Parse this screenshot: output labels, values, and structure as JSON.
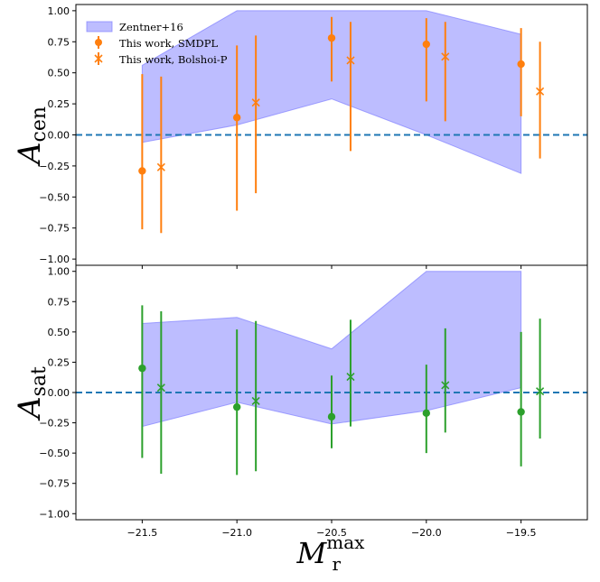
{
  "colors": {
    "band": "#8080ff",
    "band_opacity": 0.52,
    "smdpl": "#ff7f0e",
    "bolshoi": "#ff7f0e",
    "sat": "#2ca02c",
    "zero_line": "#1f77b4",
    "axis": "#000000"
  },
  "chart_data": [
    {
      "type": "scatter",
      "panel": "top",
      "ylabel": {
        "main": "A",
        "sub": "cen"
      },
      "xlim": [
        -21.85,
        -19.15
      ],
      "ylim": [
        -1.05,
        1.05
      ],
      "yticks": [
        -1.0,
        -0.75,
        -0.5,
        -0.25,
        0.0,
        0.25,
        0.5,
        0.75,
        1.0
      ],
      "ytick_labels": [
        "−1.00",
        "−0.75",
        "−0.50",
        "−0.25",
        "0.00",
        "0.25",
        "0.50",
        "0.75",
        "1.00"
      ],
      "zero_line": 0.0,
      "band": {
        "name": "Zentner+16",
        "x": [
          -21.5,
          -21.0,
          -20.5,
          -20.0,
          -19.5
        ],
        "lower": [
          -0.06,
          0.08,
          0.29,
          0.0,
          -0.31
        ],
        "upper": [
          0.56,
          1.0,
          1.0,
          1.0,
          0.81
        ]
      },
      "series": [
        {
          "name": "This work, SMDPL",
          "marker": "circle",
          "x": [
            -21.5,
            -21.0,
            -20.5,
            -20.0,
            -19.5
          ],
          "y": [
            -0.29,
            0.14,
            0.78,
            0.73,
            0.57
          ],
          "yerr_low": [
            -0.76,
            -0.61,
            0.43,
            0.27,
            0.15
          ],
          "yerr_high": [
            0.49,
            0.72,
            0.95,
            0.94,
            0.86
          ]
        },
        {
          "name": "This work, Bolshoi-P",
          "marker": "x",
          "x": [
            -21.4,
            -20.9,
            -20.4,
            -19.9,
            -19.4
          ],
          "y": [
            -0.26,
            0.26,
            0.6,
            0.63,
            0.35
          ],
          "yerr_low": [
            -0.79,
            -0.47,
            -0.13,
            0.11,
            -0.19
          ],
          "yerr_high": [
            0.47,
            0.8,
            0.91,
            0.91,
            0.75
          ]
        }
      ]
    },
    {
      "type": "scatter",
      "panel": "bottom",
      "ylabel": {
        "main": "A",
        "sub": "sat"
      },
      "xlabel": {
        "main": "M",
        "sub": "r",
        "sup": "max"
      },
      "xlim": [
        -21.85,
        -19.15
      ],
      "ylim": [
        -1.05,
        1.05
      ],
      "xticks": [
        -21.5,
        -21.0,
        -20.5,
        -20.0,
        -19.5
      ],
      "xtick_labels": [
        "−21.5",
        "−21.0",
        "−20.5",
        "−20.0",
        "−19.5"
      ],
      "yticks": [
        -1.0,
        -0.75,
        -0.5,
        -0.25,
        0.0,
        0.25,
        0.5,
        0.75,
        1.0
      ],
      "ytick_labels": [
        "−1.00",
        "−0.75",
        "−0.50",
        "−0.25",
        "0.00",
        "0.25",
        "0.50",
        "0.75",
        "1.00"
      ],
      "zero_line": 0.0,
      "band": {
        "name": "Zentner+16",
        "x": [
          -21.5,
          -21.0,
          -20.5,
          -20.0,
          -19.5
        ],
        "lower": [
          -0.28,
          -0.08,
          -0.26,
          -0.15,
          0.04
        ],
        "upper": [
          0.57,
          0.62,
          0.36,
          1.0,
          1.0
        ]
      },
      "series": [
        {
          "name": "This work, SMDPL",
          "marker": "circle",
          "x": [
            -21.5,
            -21.0,
            -20.5,
            -20.0,
            -19.5
          ],
          "y": [
            0.2,
            -0.12,
            -0.2,
            -0.17,
            -0.16
          ],
          "yerr_low": [
            -0.54,
            -0.68,
            -0.46,
            -0.5,
            -0.61
          ],
          "yerr_high": [
            0.72,
            0.52,
            0.14,
            0.23,
            0.5
          ]
        },
        {
          "name": "This work, Bolshoi-P",
          "marker": "x",
          "x": [
            -21.4,
            -20.9,
            -20.4,
            -19.9,
            -19.4
          ],
          "y": [
            0.04,
            -0.07,
            0.13,
            0.06,
            0.01
          ],
          "yerr_low": [
            -0.67,
            -0.65,
            -0.28,
            -0.33,
            -0.38
          ],
          "yerr_high": [
            0.67,
            0.59,
            0.6,
            0.53,
            0.61
          ]
        }
      ]
    }
  ],
  "legend": {
    "location": "top-left",
    "entries": [
      "Zentner+16",
      "This work, SMDPL",
      "This work, Bolshoi-P"
    ]
  }
}
